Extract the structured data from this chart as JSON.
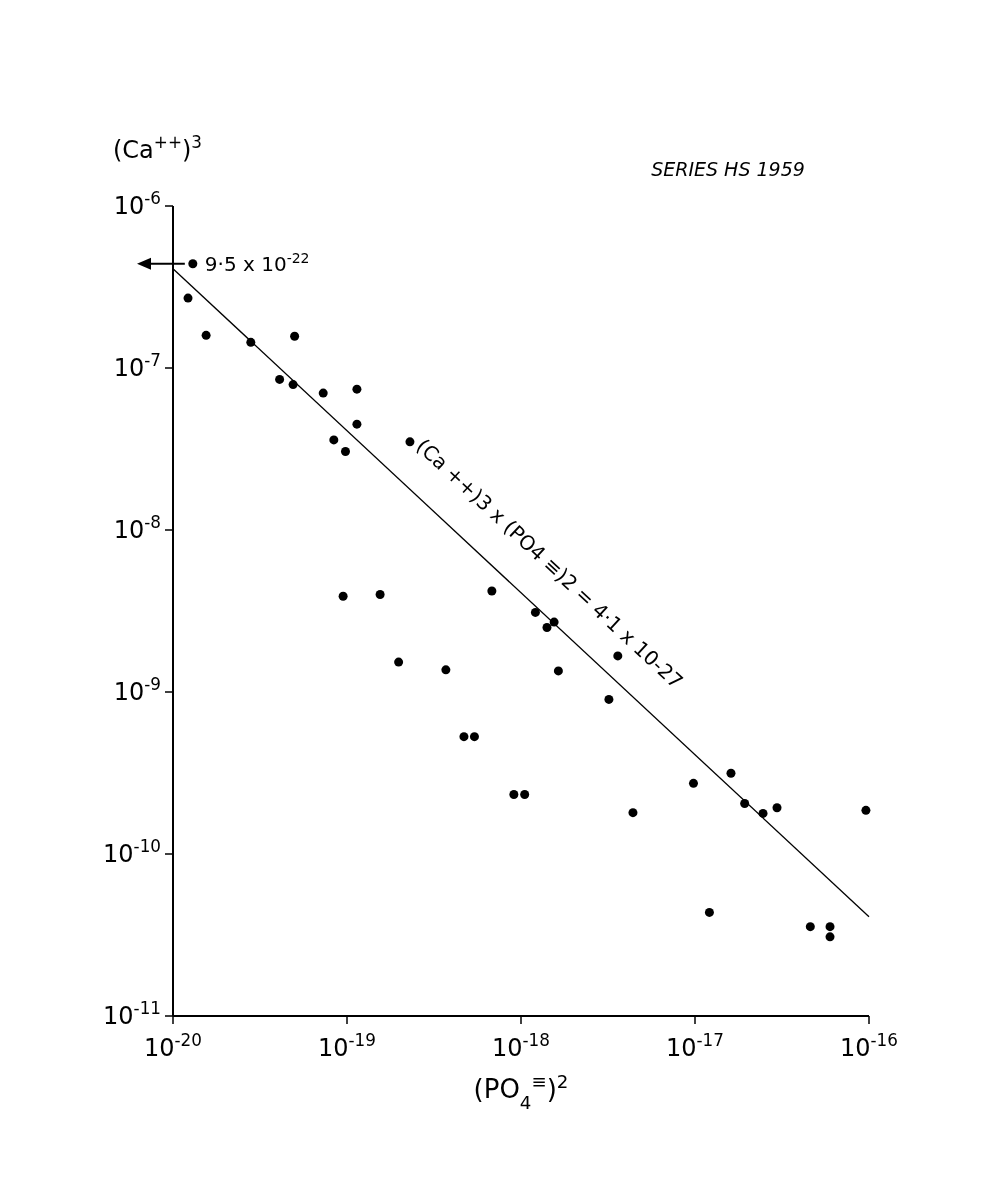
{
  "chart_data": {
    "type": "scatter",
    "title": "SERIES HS 1959",
    "xlabel": "(PO$_{4}$$^{≡}$)$^{2}$",
    "ylabel": "(Ca$^{++}$)$^{3}$",
    "log": "xy",
    "grid": false,
    "marker": "circle",
    "xlim": [
      1e-20,
      1e-16
    ],
    "ylim": [
      1e-11,
      1e-06
    ],
    "xticks": [
      {
        "value": 1e-20,
        "label": "10$^{-20}$"
      },
      {
        "value": 1e-19,
        "label": "10$^{-19}$"
      },
      {
        "value": 1e-18,
        "label": "10$^{-18}$"
      },
      {
        "value": 1e-17,
        "label": "10$^{-17}$"
      },
      {
        "value": 1e-16,
        "label": "10$^{-16}$"
      }
    ],
    "yticks": [
      {
        "value": 1e-11,
        "label": "10$^{-11}$"
      },
      {
        "value": 1e-10,
        "label": "10$^{-10}$"
      },
      {
        "value": 1e-09,
        "label": "10$^{-9}$"
      },
      {
        "value": 1e-08,
        "label": "10$^{-8}$"
      },
      {
        "value": 1e-07,
        "label": "10$^{-7}$"
      },
      {
        "value": 1e-06,
        "label": "10$^{-6}$"
      }
    ],
    "series": [
      {
        "color": "#000000",
        "x": [
          1.3e-20,
          1.22e-20,
          1.55e-20,
          2.8e-20,
          5e-20,
          4.1e-20,
          4.9e-20,
          7.3e-20,
          1.14e-19,
          1.14e-19,
          8.4e-20,
          9.8e-20,
          2.3e-19,
          9.5e-20,
          1.55e-19,
          6.8e-19,
          1.21e-18,
          1.41e-18,
          1.55e-18,
          3.6e-18,
          1.98e-19,
          3.7e-19,
          1.64e-18,
          3.2e-18,
          4.7e-19,
          5.4e-19,
          9.1e-19,
          1.05e-18,
          4.4e-18,
          9.8e-18,
          1.61e-17,
          1.93e-17,
          2.46e-17,
          2.96e-17,
          9.6e-17,
          1.21e-17,
          4.6e-17,
          5.97e-17,
          5.97e-17
        ],
        "values": [
          4.4e-07,
          2.7e-07,
          1.59e-07,
          1.44e-07,
          1.57e-07,
          8.5e-08,
          7.9e-08,
          7e-08,
          7.4e-08,
          4.5e-08,
          3.6e-08,
          3.05e-08,
          3.5e-08,
          3.9e-09,
          4e-09,
          4.2e-09,
          3.1e-09,
          2.5e-09,
          2.7e-09,
          1.67e-09,
          1.53e-09,
          1.37e-09,
          1.35e-09,
          9e-10,
          5.3e-10,
          5.3e-10,
          2.33e-10,
          2.33e-10,
          1.8e-10,
          2.73e-10,
          3.15e-10,
          2.05e-10,
          1.78e-10,
          1.93e-10,
          1.86e-10,
          4.36e-11,
          3.56e-11,
          3.56e-11,
          3.08e-11
        ]
      },
      {
        "type": "line",
        "name": "(Ca ++)3 x (PO4 ≡)2 = 4·1 x 10-27",
        "color": "#000000",
        "line_style": "solid",
        "marker": "none",
        "x": [
          1e-20,
          1e-16
        ],
        "values": [
          4.1e-07,
          4.1e-11
        ]
      }
    ],
    "annotations": [
      {
        "text": "9·5 x 10$^{-22}$",
        "x": 1.3e-20,
        "y": 4.4e-07
      }
    ]
  }
}
